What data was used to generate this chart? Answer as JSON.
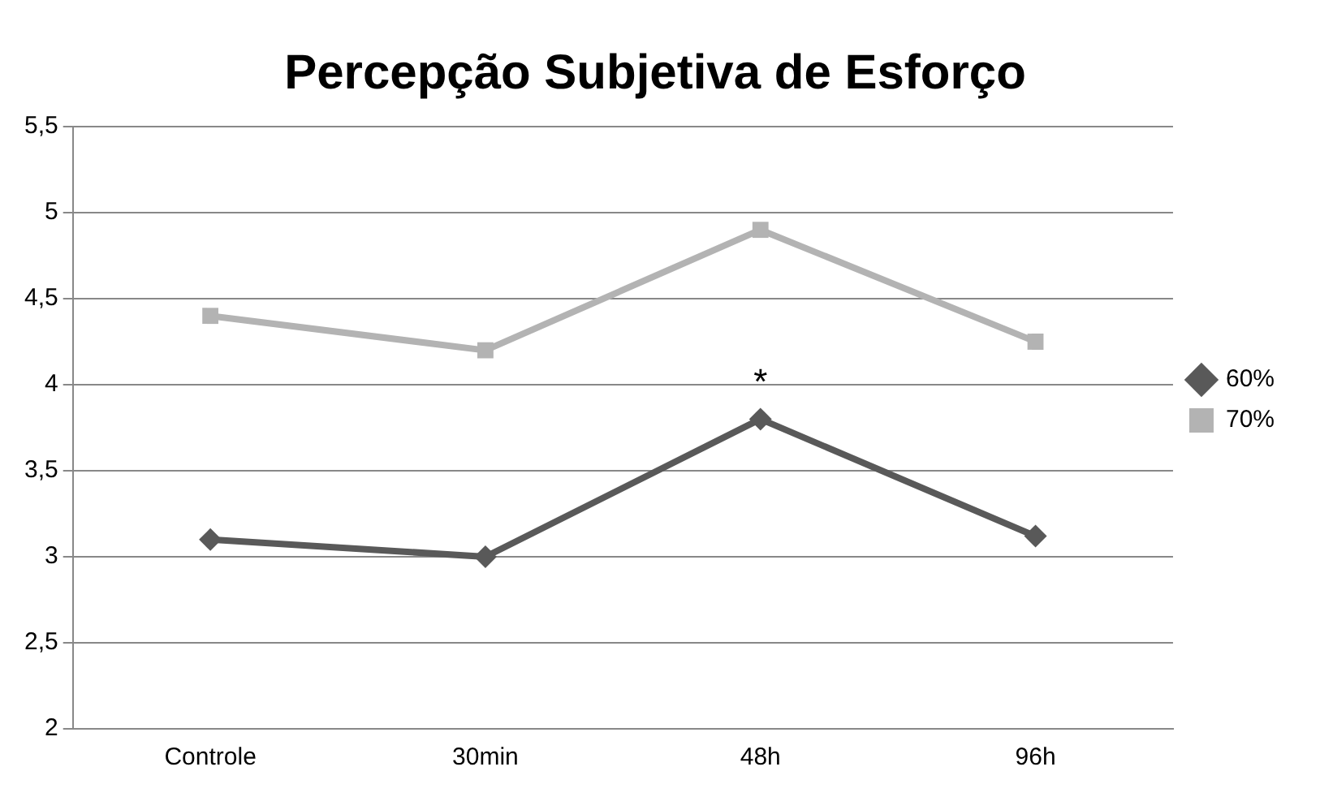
{
  "chart_data": {
    "type": "line",
    "title": "Percepção Subjetiva de Esforço",
    "categories": [
      "Controle",
      "30min",
      "48h",
      "96h"
    ],
    "series": [
      {
        "name": "60%",
        "color": "#595959",
        "marker": "diamond",
        "values": [
          3.1,
          3.0,
          3.8,
          3.12
        ]
      },
      {
        "name": "70%",
        "color": "#b3b3b3",
        "marker": "square",
        "values": [
          4.4,
          4.2,
          4.9,
          4.25
        ]
      }
    ],
    "ylim": [
      2,
      5.5
    ],
    "yticks": [
      2,
      {
        "value": 2.5,
        "label": "2,5"
      },
      3,
      {
        "value": 3.5,
        "label": "3,5"
      },
      4,
      {
        "value": 4.5,
        "label": "4,5"
      },
      5,
      {
        "value": 5.5,
        "label": "5,5"
      }
    ],
    "grid": "y",
    "legend": "right",
    "line_style": "solid",
    "annotations": [
      {
        "text": "*",
        "x": "48h",
        "y": 3.8
      }
    ]
  }
}
